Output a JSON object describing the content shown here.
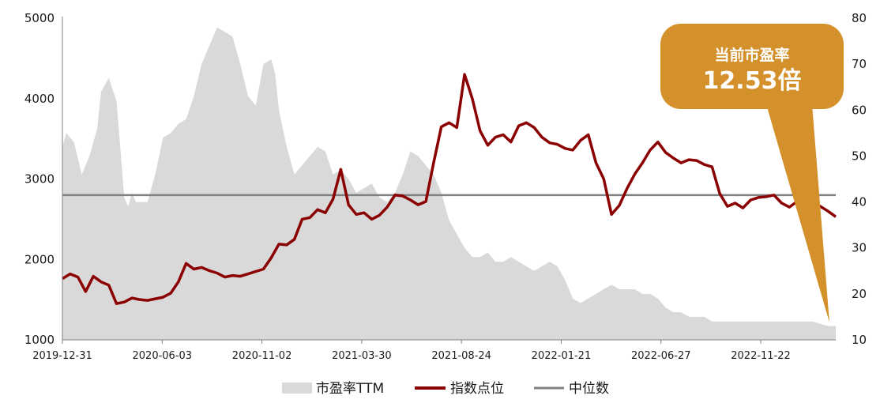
{
  "chart_data": {
    "type": "line",
    "title": "",
    "xlabel": "",
    "ylabel_left": "",
    "ylabel_right": "",
    "left_axis": {
      "ylim": [
        1000,
        5000
      ],
      "ticks": [
        "1000",
        "2000",
        "3000",
        "4000",
        "5000"
      ]
    },
    "right_axis": {
      "ylim": [
        10,
        80
      ],
      "ticks": [
        "10",
        "20",
        "30",
        "40",
        "50",
        "60",
        "70",
        "80"
      ]
    },
    "x_ticks": [
      "2019-12-31",
      "2020-06-03",
      "2020-11-02",
      "2021-03-30",
      "2021-08-24",
      "2022-01-21",
      "2022-06-27",
      "2022-11-22"
    ],
    "x_range": [
      0,
      100
    ],
    "x_tick_positions": [
      0,
      12.9,
      25.8,
      38.7,
      51.6,
      64.5,
      77.4,
      90.3
    ],
    "grid": false,
    "legend_position": "bottom",
    "legend": [
      {
        "name": "市盈率TTM",
        "kind": "area",
        "color": "#d9d9d9"
      },
      {
        "name": "指数点位",
        "kind": "line",
        "color": "#8b0000"
      },
      {
        "name": "中位数",
        "kind": "line",
        "color": "#808080"
      }
    ],
    "series": [
      {
        "name": "市盈率TTM",
        "axis": "right",
        "kind": "area",
        "color": "#d9d9d9",
        "x": [
          0,
          0.5,
          1.5,
          2.5,
          3.5,
          4,
          4.5,
          5,
          6,
          7,
          8,
          8.5,
          9,
          9.5,
          10,
          11,
          12,
          13,
          14,
          15,
          16,
          17,
          18,
          19,
          20,
          21,
          22,
          23,
          24,
          25,
          26,
          27,
          27.5,
          28,
          29,
          30,
          31,
          32,
          33,
          34,
          35,
          36,
          37,
          38,
          39,
          40,
          41,
          42,
          43,
          44,
          45,
          46,
          47,
          48,
          49,
          50,
          51,
          52,
          53,
          54,
          55,
          56,
          57,
          58,
          59,
          60,
          61,
          62,
          63,
          64,
          65,
          66,
          67,
          68,
          69,
          70,
          71,
          72,
          73,
          74,
          75,
          76,
          77,
          78,
          79,
          80,
          81,
          82,
          83,
          84,
          85,
          86,
          87,
          88,
          89,
          90,
          91,
          92,
          93,
          94,
          95,
          96,
          97,
          98,
          99,
          100
        ],
        "values": [
          52,
          55,
          53,
          46,
          50,
          53,
          56,
          64,
          67,
          62,
          41,
          39,
          42,
          40,
          40,
          40,
          46,
          54,
          55,
          57,
          58,
          63,
          70,
          74,
          78,
          77,
          76,
          70,
          63,
          61,
          70,
          71,
          68,
          60,
          52,
          46,
          48,
          50,
          52,
          51,
          46,
          47,
          45,
          42,
          43,
          44,
          41,
          40,
          42,
          46,
          51,
          50,
          48,
          46,
          42,
          36,
          33,
          30,
          28,
          28,
          29,
          27,
          27,
          28,
          27,
          26,
          25,
          26,
          27,
          26,
          23,
          19,
          18,
          19,
          20,
          21,
          22,
          21,
          21,
          21,
          20,
          20,
          19,
          17,
          16,
          16,
          15,
          15,
          15,
          14,
          14,
          14,
          14,
          14,
          14,
          14,
          14,
          14,
          14,
          14,
          14,
          14,
          14,
          13.5,
          13,
          13
        ]
      },
      {
        "name": "指数点位",
        "axis": "left",
        "kind": "line",
        "color": "#8b0000",
        "x": [
          0,
          1,
          2,
          3,
          4,
          5,
          6,
          7,
          8,
          9,
          10,
          11,
          12,
          13,
          14,
          15,
          16,
          17,
          18,
          19,
          20,
          21,
          22,
          23,
          24,
          25,
          26,
          27,
          28,
          29,
          30,
          31,
          32,
          33,
          34,
          35,
          36,
          37,
          38,
          39,
          40,
          41,
          42,
          43,
          44,
          45,
          46,
          47,
          48,
          49,
          50,
          51,
          52,
          53,
          54,
          55,
          56,
          57,
          58,
          59,
          60,
          61,
          62,
          63,
          64,
          65,
          66,
          67,
          68,
          69,
          70,
          71,
          72,
          73,
          74,
          75,
          76,
          77,
          78,
          79,
          80,
          81,
          82,
          83,
          84,
          85,
          86,
          87,
          88,
          89,
          90,
          91,
          92,
          93,
          94,
          95,
          96,
          97,
          98,
          99,
          100
        ],
        "values": [
          1760,
          1820,
          1780,
          1600,
          1790,
          1720,
          1680,
          1450,
          1470,
          1520,
          1500,
          1490,
          1510,
          1530,
          1580,
          1720,
          1950,
          1880,
          1900,
          1860,
          1830,
          1780,
          1800,
          1790,
          1820,
          1850,
          1880,
          2020,
          2190,
          2180,
          2250,
          2500,
          2520,
          2620,
          2580,
          2750,
          3120,
          2680,
          2560,
          2580,
          2500,
          2550,
          2650,
          2800,
          2790,
          2740,
          2680,
          2720,
          3200,
          3650,
          3700,
          3640,
          4300,
          4000,
          3600,
          3420,
          3520,
          3550,
          3460,
          3660,
          3700,
          3640,
          3520,
          3450,
          3430,
          3380,
          3360,
          3480,
          3550,
          3200,
          3000,
          2560,
          2670,
          2880,
          3060,
          3200,
          3360,
          3460,
          3330,
          3260,
          3200,
          3240,
          3230,
          3180,
          3150,
          2820,
          2660,
          2700,
          2640,
          2740,
          2770,
          2780,
          2800,
          2700,
          2650,
          2720,
          2700,
          2680,
          2660,
          2600,
          2530
        ]
      },
      {
        "name": "中位数",
        "axis": "right",
        "kind": "line",
        "color": "#808080",
        "x": [
          0,
          100
        ],
        "values": [
          41.5,
          41.5
        ]
      }
    ],
    "annotation": {
      "title": "当前市盈率",
      "value": "12.53倍"
    }
  }
}
